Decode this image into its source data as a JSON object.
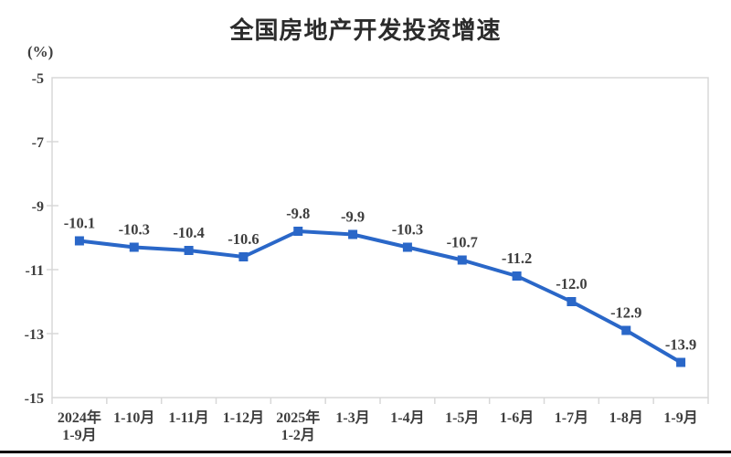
{
  "chart_data": {
    "type": "line",
    "title": "全国房地产开发投资增速",
    "unit_label": "(%)",
    "categories": [
      [
        "2024年",
        "1-9月"
      ],
      [
        "1-10月"
      ],
      [
        "1-11月"
      ],
      [
        "1-12月"
      ],
      [
        "2025年",
        "1-2月"
      ],
      [
        "1-3月"
      ],
      [
        "1-4月"
      ],
      [
        "1-5月"
      ],
      [
        "1-6月"
      ],
      [
        "1-7月"
      ],
      [
        "1-8月"
      ],
      [
        "1-9月"
      ]
    ],
    "series": [
      {
        "name": "全国房地产开发投资增速",
        "values": [
          -10.1,
          -10.3,
          -10.4,
          -10.6,
          -9.8,
          -9.9,
          -10.3,
          -10.7,
          -11.2,
          -12.0,
          -12.9,
          -13.9
        ],
        "color": "#2a67c8",
        "marker": "square"
      }
    ],
    "data_labels": [
      "-10.1",
      "-10.3",
      "-10.4",
      "-10.6",
      "-9.8",
      "-9.9",
      "-10.3",
      "-10.7",
      "-11.2",
      "-12.0",
      "-12.9",
      "-13.9"
    ],
    "y_axis": {
      "min": -15,
      "max": -5,
      "ticks": [
        -5,
        -7,
        -9,
        -11,
        -13,
        -15
      ],
      "tick_labels": [
        "-5",
        "-7",
        "-9",
        "-11",
        "-13",
        "-15"
      ]
    },
    "grid": false,
    "legend": "none",
    "axis_color": "#d8d8d8",
    "label_color": "#3e3e3e",
    "title_color": "#2b2b2b"
  }
}
